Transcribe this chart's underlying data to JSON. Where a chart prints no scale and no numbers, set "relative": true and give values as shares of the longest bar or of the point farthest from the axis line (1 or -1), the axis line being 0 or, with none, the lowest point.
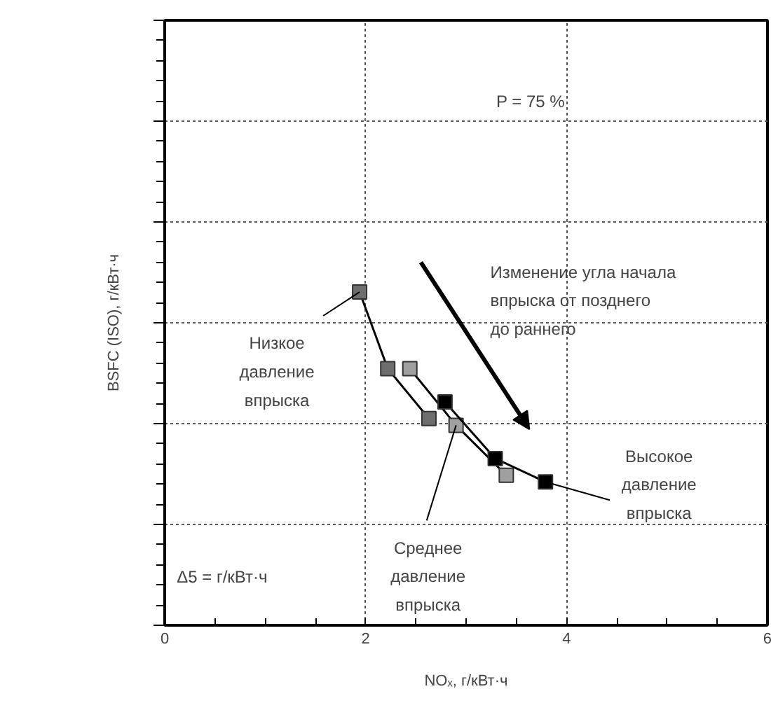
{
  "chart_data": {
    "type": "line",
    "xlabel": "NOₓ, г/кВт·ч",
    "ylabel": "BSFC (ISO), г/кВт·ч",
    "relative": true,
    "xlim": [
      0,
      6
    ],
    "xticks": [
      0,
      {
        "value": 0.5,
        "label": null
      },
      {
        "value": 1,
        "label": null
      },
      {
        "value": 1.5,
        "label": null
      },
      2,
      {
        "value": 2.5,
        "label": null
      },
      {
        "value": 3,
        "label": null
      },
      {
        "value": 3.5,
        "label": null
      },
      4,
      {
        "value": 4.5,
        "label": null
      },
      {
        "value": 5,
        "label": null
      },
      {
        "value": 5.5,
        "label": null
      },
      6
    ],
    "tick_labels": "x",
    "grid": true,
    "marker": "square",
    "line_style": "solid",
    "series": [
      {
        "color": "#6e6e6e",
        "x": [
          1.94,
          2.22,
          2.63
        ],
        "values": [
          1.0,
          0.77,
          0.62
        ]
      },
      {
        "color": "#a0a0a0",
        "x": [
          2.44,
          2.9,
          3.4
        ],
        "values": [
          0.77,
          0.6,
          0.45
        ]
      },
      {
        "color": "#000000",
        "x": [
          2.79,
          3.29,
          3.79
        ],
        "values": [
          0.67,
          0.5,
          0.43
        ]
      }
    ],
    "annotations": [
      "P = 75 %",
      "Δ5 = г/кВт·ч",
      "Изменение угла начала\nвпрыска от позднего\nдо раннего",
      {
        "text": "Низкое\nдавление\nвпрыска",
        "x": 1.94,
        "y": 1.0
      },
      {
        "text": "Среднее\nдавление\nвпрыска",
        "x": 2.9,
        "y": 0.6
      },
      {
        "text": "Высокое\nдавление\nвпрыска",
        "x": 3.79,
        "y": 0.43
      }
    ]
  }
}
